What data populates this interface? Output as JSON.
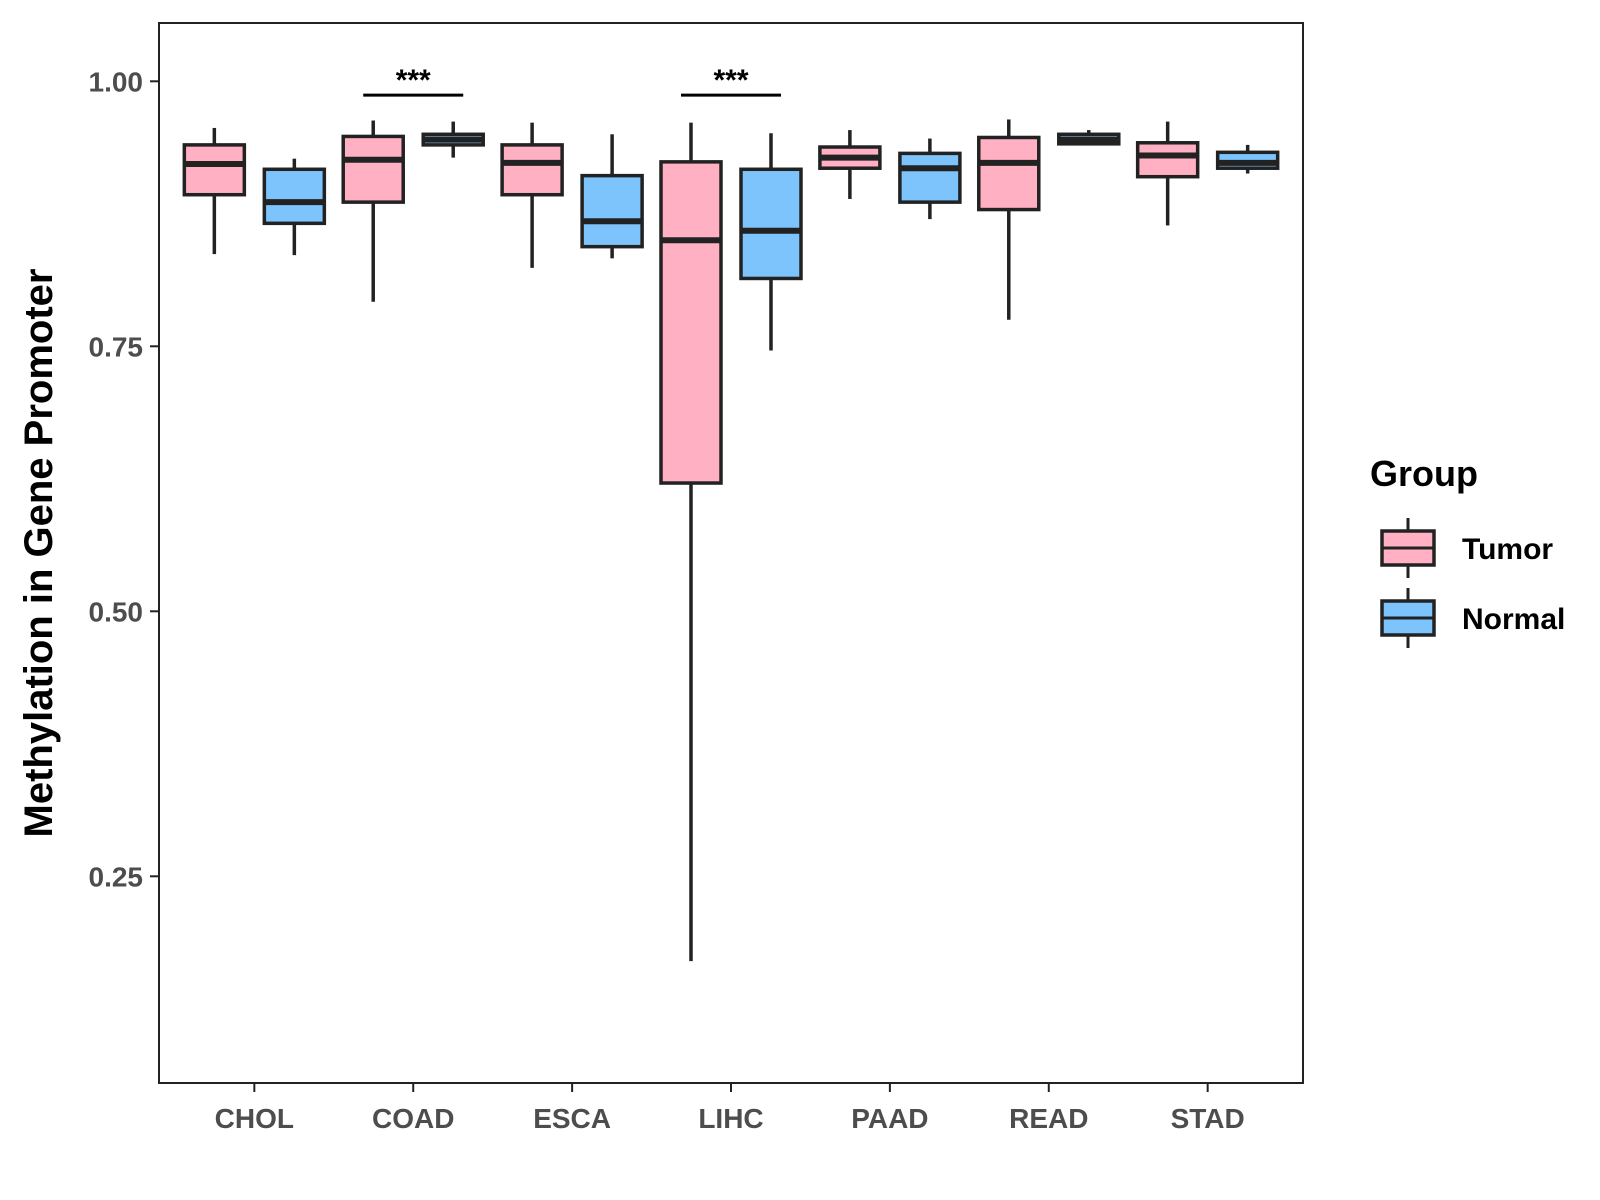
{
  "chart_data": {
    "type": "boxplot",
    "title": "",
    "xlabel": "",
    "ylabel": "Methylation in Gene Promoter",
    "ylim": [
      0.055,
      1.055
    ],
    "y_ticks": [
      0.25,
      0.5,
      0.75,
      1.0
    ],
    "y_tick_labels": [
      "0.25",
      "0.50",
      "0.75",
      "1.00"
    ],
    "grid": false,
    "categories": [
      "CHOL",
      "COAD",
      "ESCA",
      "LIHC",
      "PAAD",
      "READ",
      "STAD"
    ],
    "legend": {
      "title": "Group",
      "position": "right",
      "entries": [
        {
          "name": "Tumor",
          "color": "#FFB0C3"
        },
        {
          "name": "Normal",
          "color": "#7CC4FB"
        }
      ]
    },
    "series": [
      {
        "name": "Tumor",
        "color": "#FFB0C3",
        "boxes": [
          {
            "min": 0.837,
            "q1": 0.893,
            "median": 0.922,
            "q3": 0.94,
            "max": 0.956
          },
          {
            "min": 0.792,
            "q1": 0.886,
            "median": 0.926,
            "q3": 0.948,
            "max": 0.963
          },
          {
            "min": 0.824,
            "q1": 0.893,
            "median": 0.923,
            "q3": 0.94,
            "max": 0.961
          },
          {
            "min": 0.17,
            "q1": 0.621,
            "median": 0.85,
            "q3": 0.924,
            "max": 0.961
          },
          {
            "min": 0.889,
            "q1": 0.918,
            "median": 0.928,
            "q3": 0.938,
            "max": 0.954
          },
          {
            "min": 0.775,
            "q1": 0.879,
            "median": 0.923,
            "q3": 0.947,
            "max": 0.964
          },
          {
            "min": 0.864,
            "q1": 0.91,
            "median": 0.93,
            "q3": 0.942,
            "max": 0.962
          }
        ]
      },
      {
        "name": "Normal",
        "color": "#7CC4FB",
        "boxes": [
          {
            "min": 0.836,
            "q1": 0.866,
            "median": 0.886,
            "q3": 0.917,
            "max": 0.927
          },
          {
            "min": 0.928,
            "q1": 0.94,
            "median": 0.945,
            "q3": 0.95,
            "max": 0.962
          },
          {
            "min": 0.833,
            "q1": 0.844,
            "median": 0.868,
            "q3": 0.911,
            "max": 0.95
          },
          {
            "min": 0.746,
            "q1": 0.814,
            "median": 0.859,
            "q3": 0.917,
            "max": 0.951
          },
          {
            "min": 0.87,
            "q1": 0.886,
            "median": 0.918,
            "q3": 0.932,
            "max": 0.946
          },
          {
            "min": 0.94,
            "q1": 0.941,
            "median": 0.945,
            "q3": 0.95,
            "max": 0.954
          },
          {
            "min": 0.913,
            "q1": 0.918,
            "median": 0.923,
            "q3": 0.933,
            "max": 0.94
          }
        ]
      }
    ],
    "annotations": [
      {
        "category": "COAD",
        "label": "***",
        "y": 0.987
      },
      {
        "category": "LIHC",
        "label": "***",
        "y": 0.987
      }
    ]
  }
}
